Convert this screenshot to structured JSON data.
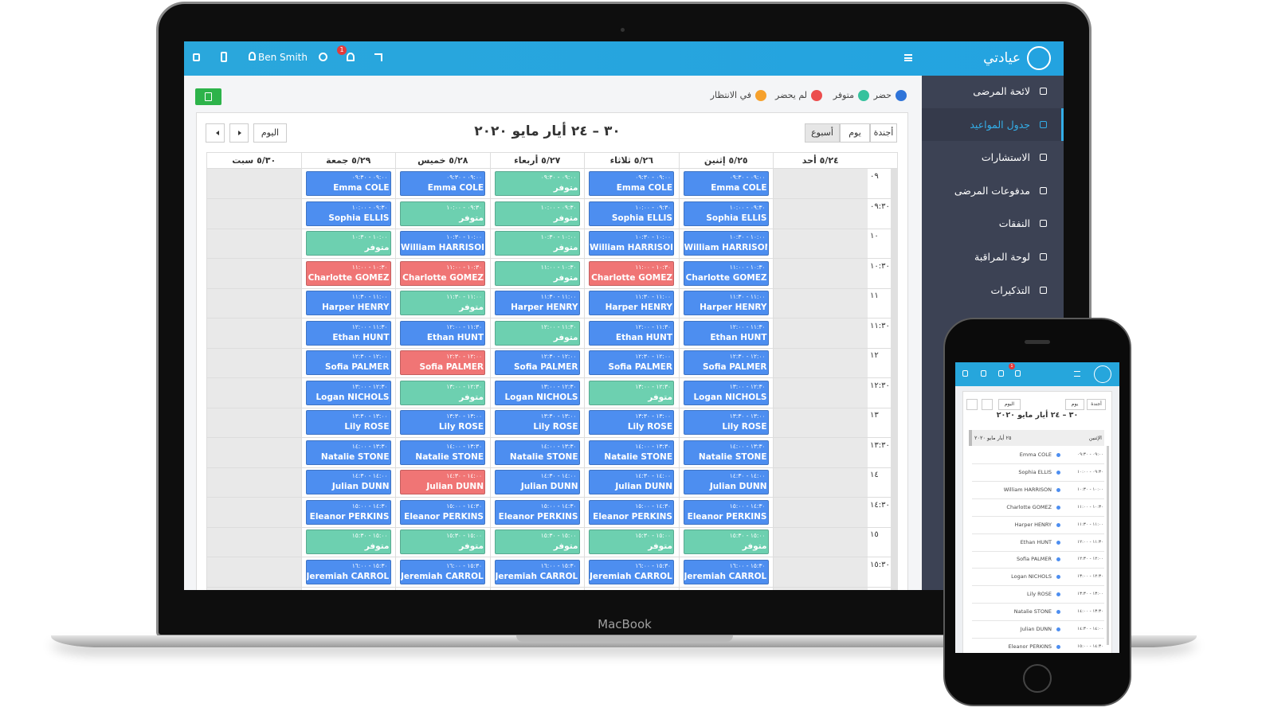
{
  "laptop": {
    "brand": "عيادتي",
    "user": "Ben Smith",
    "notifications": "1",
    "menu": [
      "لائحة المرضى",
      "جدول المواعيد",
      "الاستشارات",
      "مدفوعات المرضى",
      "النفقات",
      "لوحة المراقبة",
      "التذكيرات"
    ],
    "legend": [
      {
        "label": "حضر",
        "color": "#2f74d9"
      },
      {
        "label": "متوفر",
        "color": "#35c29d"
      },
      {
        "label": "لم يحضر",
        "color": "#ec4d4d"
      },
      {
        "label": "في الانتظار",
        "color": "#f6a12d"
      }
    ],
    "calendar": {
      "title": "٣٠ – ٢٤ أيار مايو ٢٠٢٠",
      "views": [
        "أجندة",
        "يوم",
        "أسبوع"
      ],
      "today": "اليوم",
      "days": [
        "٥/٢٤ أحد",
        "٥/٢٥ إثنين",
        "٥/٢٦ ثلاثاء",
        "٥/٢٧ أربعاء",
        "٥/٢٨ خميس",
        "٥/٢٩ جمعة",
        "٥/٣٠ سبت"
      ],
      "slots": [
        {
          "time": "٠٩",
          "range": "٠٩:٠٠ - ٠٩:٣٠",
          "cells": [
            {
              "text": "Emma COLE",
              "color": "#4d8ef0"
            },
            {
              "text": "Emma COLE",
              "color": "#4d8ef0"
            },
            {
              "text": "متوفر",
              "color": "#6dd0b0"
            },
            {
              "text": "Emma COLE",
              "color": "#4d8ef0"
            },
            {
              "text": "Emma COLE",
              "color": "#4d8ef0"
            }
          ]
        },
        {
          "time": "٠٩:٣٠",
          "range": "٠٩:٣٠ - ١٠:٠٠",
          "cells": [
            {
              "text": "Sophia ELLIS",
              "color": "#4d8ef0"
            },
            {
              "text": "Sophia ELLIS",
              "color": "#4d8ef0"
            },
            {
              "text": "متوفر",
              "color": "#6dd0b0"
            },
            {
              "text": "متوفر",
              "color": "#6dd0b0"
            },
            {
              "text": "Sophia ELLIS",
              "color": "#4d8ef0"
            }
          ]
        },
        {
          "time": "١٠",
          "range": "١٠:٠٠ - ١٠:٣٠",
          "cells": [
            {
              "text": "William HARRISON",
              "color": "#4d8ef0"
            },
            {
              "text": "William HARRISON",
              "color": "#4d8ef0"
            },
            {
              "text": "متوفر",
              "color": "#6dd0b0"
            },
            {
              "text": "William HARRISON",
              "color": "#4d8ef0"
            },
            {
              "text": "متوفر",
              "color": "#6dd0b0"
            }
          ]
        },
        {
          "time": "١٠:٣٠",
          "range": "١٠:٣٠ - ١١:٠٠",
          "cells": [
            {
              "text": "Charlotte GOMEZ",
              "color": "#4d8ef0"
            },
            {
              "text": "Charlotte GOMEZ",
              "color": "#f07575"
            },
            {
              "text": "متوفر",
              "color": "#6dd0b0"
            },
            {
              "text": "Charlotte GOMEZ",
              "color": "#f07575"
            },
            {
              "text": "Charlotte GOMEZ",
              "color": "#f07575"
            }
          ]
        },
        {
          "time": "١١",
          "range": "١١:٠٠ - ١١:٣٠",
          "cells": [
            {
              "text": "Harper HENRY",
              "color": "#4d8ef0"
            },
            {
              "text": "Harper HENRY",
              "color": "#4d8ef0"
            },
            {
              "text": "Harper HENRY",
              "color": "#4d8ef0"
            },
            {
              "text": "متوفر",
              "color": "#6dd0b0"
            },
            {
              "text": "Harper HENRY",
              "color": "#4d8ef0"
            }
          ]
        },
        {
          "time": "١١:٣٠",
          "range": "١١:٣٠ - ١٢:٠٠",
          "cells": [
            {
              "text": "Ethan HUNT",
              "color": "#4d8ef0"
            },
            {
              "text": "Ethan HUNT",
              "color": "#4d8ef0"
            },
            {
              "text": "متوفر",
              "color": "#6dd0b0"
            },
            {
              "text": "Ethan HUNT",
              "color": "#4d8ef0"
            },
            {
              "text": "Ethan HUNT",
              "color": "#4d8ef0"
            }
          ]
        },
        {
          "time": "١٢",
          "range": "١٢:٠٠ - ١٢:٣٠",
          "cells": [
            {
              "text": "Sofia PALMER",
              "color": "#4d8ef0"
            },
            {
              "text": "Sofia PALMER",
              "color": "#4d8ef0"
            },
            {
              "text": "Sofia PALMER",
              "color": "#4d8ef0"
            },
            {
              "text": "Sofia PALMER",
              "color": "#f07575"
            },
            {
              "text": "Sofia PALMER",
              "color": "#4d8ef0"
            }
          ]
        },
        {
          "time": "١٢:٣٠",
          "range": "١٢:٣٠ - ١٣:٠٠",
          "cells": [
            {
              "text": "Logan NICHOLS",
              "color": "#4d8ef0"
            },
            {
              "text": "متوفر",
              "color": "#6dd0b0"
            },
            {
              "text": "Logan NICHOLS",
              "color": "#4d8ef0"
            },
            {
              "text": "متوفر",
              "color": "#6dd0b0"
            },
            {
              "text": "Logan NICHOLS",
              "color": "#4d8ef0"
            }
          ]
        },
        {
          "time": "١٣",
          "range": "١٣:٠٠ - ١٣:٣٠",
          "cells": [
            {
              "text": "Lily ROSE",
              "color": "#4d8ef0"
            },
            {
              "text": "Lily ROSE",
              "color": "#4d8ef0"
            },
            {
              "text": "Lily ROSE",
              "color": "#4d8ef0"
            },
            {
              "text": "Lily ROSE",
              "color": "#4d8ef0"
            },
            {
              "text": "Lily ROSE",
              "color": "#4d8ef0"
            }
          ]
        },
        {
          "time": "١٣:٣٠",
          "range": "١٣:٣٠ - ١٤:٠٠",
          "cells": [
            {
              "text": "Natalie STONE",
              "color": "#4d8ef0"
            },
            {
              "text": "Natalie STONE",
              "color": "#4d8ef0"
            },
            {
              "text": "Natalie STONE",
              "color": "#4d8ef0"
            },
            {
              "text": "Natalie STONE",
              "color": "#4d8ef0"
            },
            {
              "text": "Natalie STONE",
              "color": "#4d8ef0"
            }
          ]
        },
        {
          "time": "١٤",
          "range": "١٤:٠٠ - ١٤:٣٠",
          "cells": [
            {
              "text": "Julian DUNN",
              "color": "#4d8ef0"
            },
            {
              "text": "Julian DUNN",
              "color": "#4d8ef0"
            },
            {
              "text": "Julian DUNN",
              "color": "#4d8ef0"
            },
            {
              "text": "Julian DUNN",
              "color": "#f07575"
            },
            {
              "text": "Julian DUNN",
              "color": "#4d8ef0"
            }
          ]
        },
        {
          "time": "١٤:٣٠",
          "range": "١٤:٣٠ - ١٥:٠٠",
          "cells": [
            {
              "text": "Eleanor PERKINS",
              "color": "#4d8ef0"
            },
            {
              "text": "Eleanor PERKINS",
              "color": "#4d8ef0"
            },
            {
              "text": "Eleanor PERKINS",
              "color": "#4d8ef0"
            },
            {
              "text": "Eleanor PERKINS",
              "color": "#4d8ef0"
            },
            {
              "text": "Eleanor PERKINS",
              "color": "#4d8ef0"
            }
          ]
        },
        {
          "time": "١٥",
          "range": "١٥:٠٠ - ١٥:٣٠",
          "cells": [
            {
              "text": "متوفر",
              "color": "#6dd0b0"
            },
            {
              "text": "متوفر",
              "color": "#6dd0b0"
            },
            {
              "text": "متوفر",
              "color": "#6dd0b0"
            },
            {
              "text": "متوفر",
              "color": "#6dd0b0"
            },
            {
              "text": "متوفر",
              "color": "#6dd0b0"
            }
          ]
        },
        {
          "time": "١٥:٣٠",
          "range": "١٥:٣٠ - ١٦:٠٠",
          "cells": [
            {
              "text": "Jeremiah CARROLL",
              "color": "#4d8ef0"
            },
            {
              "text": "Jeremiah CARROLL",
              "color": "#4d8ef0"
            },
            {
              "text": "Jeremiah CARROLL",
              "color": "#4d8ef0"
            },
            {
              "text": "Jeremiah CARROLL",
              "color": "#4d8ef0"
            },
            {
              "text": "Jeremiah CARROLL",
              "color": "#4d8ef0"
            }
          ]
        }
      ]
    }
  },
  "device_label": "MacBook",
  "phone": {
    "day": "الإثنين",
    "date": "٢٥ أيار مايو ٢٠٢٠"
  }
}
